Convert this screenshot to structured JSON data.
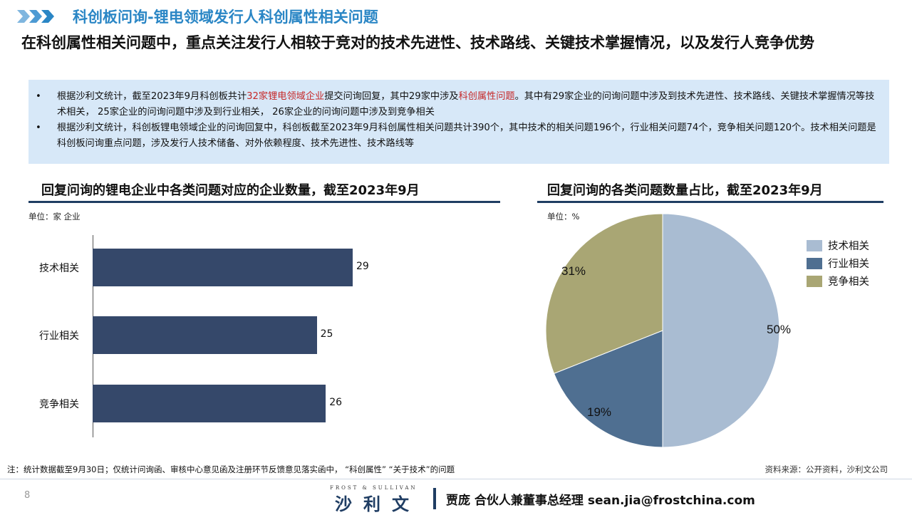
{
  "header": {
    "title": "科创板问询-锂电领域发行人科创属性相关问题",
    "subtitle": "在科创属性相关问题中，重点关注发行人相较于竞对的技术先进性、技术路线、关键技术掌握情况，以及发行人竞争优势"
  },
  "bullets": [
    {
      "marker": "•",
      "pre": "根据沙利文统计，截至2023年9月科创板共计",
      "hl1": "32家锂电领域企业",
      "mid": "提交问询回复，其中29家中涉及",
      "hl2": "科创属性问题",
      "post": "。其中有29家企业的问询问题中涉及到技术先进性、技术路线、关键技术掌握情况等技术相关， 25家企业的问询问题中涉及到行业相关， 26家企业的问询问题中涉及到竞争相关"
    },
    {
      "marker": "•",
      "text": "根据沙利文统计，科创板锂电领域企业的问询回复中，科创板截至2023年9月科创属性相关问题共计390个，其中技术的相关问题196个，行业相关问题74个，竞争相关问题120个。技术相关问题是科创板问询重点问题，涉及发行人技术储备、对外依赖程度、技术先进性、技术路线等"
    }
  ],
  "chart_data": [
    {
      "type": "bar",
      "orientation": "horizontal",
      "title": "回复问询的锂电企业中各类问题对应的企业数量，截至2023年9月",
      "unit": "单位：家 企业",
      "categories": [
        "技术相关",
        "行业相关",
        "竞争相关"
      ],
      "values": [
        29,
        25,
        26
      ],
      "value_labels": [
        "29",
        "25",
        "26"
      ],
      "color": "#35486a"
    },
    {
      "type": "pie",
      "title": "回复问询的各类问题数量占比，截至2023年9月",
      "unit": "单位：%",
      "categories": [
        "技术相关",
        "行业相关",
        "竞争相关"
      ],
      "values": [
        50,
        19,
        31
      ],
      "value_labels": [
        "50%",
        "19%",
        "31%"
      ],
      "colors": [
        "#a9bcd2",
        "#4f6f91",
        "#a9a674"
      ],
      "legend_position": "right"
    }
  ],
  "footer": {
    "note": "注：统计数据截至9月30日；仅统计问询函、审核中心意见函及注册环节反馈意见落实函中， “科创属性” “关于技术”的问题",
    "source": "资料来源：公开资料，沙利文公司",
    "page_number": "8",
    "logo_en": "FROST & SULLIVAN",
    "logo_cn": "沙利文",
    "contact": "贾庞 合伙人兼董事总经理 sean.jia@frostchina.com"
  }
}
